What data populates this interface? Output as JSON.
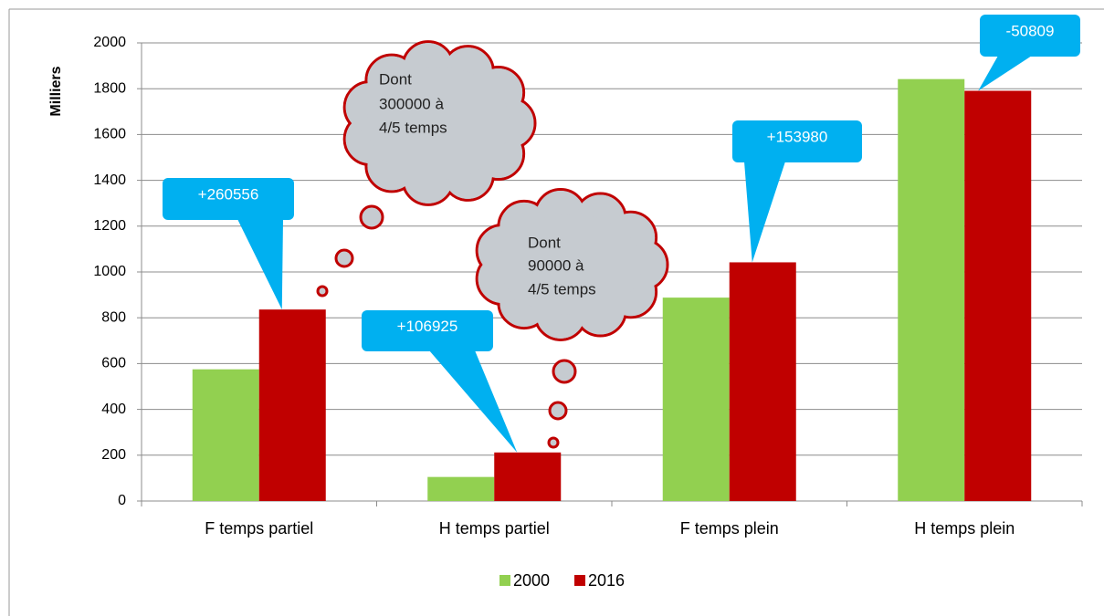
{
  "chart_data": {
    "type": "bar",
    "y_label": "Milliers",
    "categories": [
      "F temps partiel",
      "H temps partiel",
      "F temps plein",
      "H temps plein"
    ],
    "series": [
      {
        "name": "2000",
        "color": "#92d050",
        "values": [
          575,
          105,
          888,
          1842
        ]
      },
      {
        "name": "2016",
        "color": "#c00000",
        "values": [
          836,
          212,
          1042,
          1791
        ]
      }
    ],
    "ylim": [
      0,
      2000
    ],
    "yticks": [
      0,
      200,
      400,
      600,
      800,
      1000,
      1200,
      1400,
      1600,
      1800,
      2000
    ],
    "grid": true,
    "legend": "bottom",
    "callouts": [
      "+260556",
      "+106925",
      "+153980",
      "-50809"
    ],
    "clouds": [
      {
        "lines": [
          "Dont",
          "300000 à",
          "4/5 temps"
        ]
      },
      {
        "lines": [
          "Dont",
          "90000 à",
          "4/5 temps"
        ]
      }
    ]
  }
}
